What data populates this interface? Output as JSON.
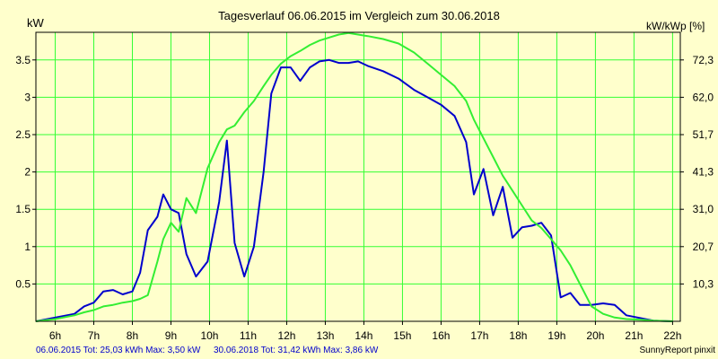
{
  "chart_data": {
    "type": "line",
    "title": "Tagesverlauf 06.06.2015 im Vergleich zum 30.06.2018",
    "ylabel_left": "kW",
    "ylabel_right": "kW/kWp [%]",
    "xlim": [
      5.5,
      22.2
    ],
    "ylim": [
      0,
      3.87
    ],
    "x_ticks": [
      6,
      7,
      8,
      9,
      10,
      11,
      12,
      13,
      14,
      15,
      16,
      17,
      18,
      19,
      20,
      21,
      22
    ],
    "x_tick_labels": [
      "6h",
      "7h",
      "8h",
      "9h",
      "10h",
      "11h",
      "12h",
      "13h",
      "14h",
      "15h",
      "16h",
      "17h",
      "18h",
      "19h",
      "20h",
      "21h",
      "22h"
    ],
    "y_ticks": [
      0.5,
      1,
      1.5,
      2,
      2.5,
      3,
      3.5
    ],
    "y_tick_labels": [
      "0.5",
      "1",
      "1.5",
      "2",
      "2.5",
      "3",
      "3.5"
    ],
    "y2_tick_values": [
      0.5,
      1.0,
      1.5,
      2.0,
      2.5,
      3.0,
      3.5
    ],
    "y2_tick_labels": [
      "10,3",
      "20,7",
      "31,0",
      "41,3",
      "51,7",
      "62,0",
      "72,3"
    ],
    "grid": true,
    "background_color": "#ffffcc",
    "grid_color": "#33ff33",
    "series": [
      {
        "color": "#0000cc",
        "x": [
          5.5,
          6.0,
          6.5,
          6.75,
          7.0,
          7.25,
          7.5,
          7.75,
          8.0,
          8.2,
          8.4,
          8.65,
          8.8,
          9.0,
          9.2,
          9.4,
          9.65,
          9.95,
          10.25,
          10.45,
          10.65,
          10.9,
          11.15,
          11.4,
          11.6,
          11.85,
          12.1,
          12.35,
          12.6,
          12.85,
          13.1,
          13.35,
          13.6,
          13.85,
          14.1,
          14.5,
          14.9,
          15.3,
          15.65,
          16.0,
          16.35,
          16.65,
          16.85,
          17.1,
          17.35,
          17.6,
          17.85,
          18.1,
          18.35,
          18.6,
          18.85,
          19.1,
          19.35,
          19.6,
          19.9,
          20.2,
          20.5,
          20.8,
          21.2,
          21.5,
          22.0
        ],
        "y": [
          0.0,
          0.05,
          0.1,
          0.2,
          0.25,
          0.4,
          0.42,
          0.36,
          0.4,
          0.65,
          1.22,
          1.4,
          1.7,
          1.5,
          1.45,
          0.9,
          0.6,
          0.8,
          1.6,
          2.42,
          1.05,
          0.6,
          1.0,
          2.0,
          3.05,
          3.4,
          3.4,
          3.22,
          3.4,
          3.48,
          3.5,
          3.46,
          3.46,
          3.48,
          3.42,
          3.35,
          3.25,
          3.1,
          3.0,
          2.9,
          2.75,
          2.4,
          1.7,
          2.04,
          1.42,
          1.8,
          1.12,
          1.26,
          1.28,
          1.32,
          1.15,
          0.32,
          0.38,
          0.22,
          0.22,
          0.24,
          0.22,
          0.08,
          0.04,
          0.01,
          0.0
        ]
      },
      {
        "color": "#33ee33",
        "x": [
          5.5,
          6.0,
          6.5,
          6.75,
          7.0,
          7.25,
          7.5,
          7.75,
          8.0,
          8.2,
          8.4,
          8.65,
          8.8,
          9.0,
          9.2,
          9.4,
          9.65,
          9.95,
          10.25,
          10.45,
          10.65,
          10.9,
          11.15,
          11.4,
          11.6,
          11.85,
          12.1,
          12.35,
          12.6,
          12.85,
          13.1,
          13.35,
          13.6,
          13.85,
          14.1,
          14.5,
          14.9,
          15.3,
          15.65,
          16.0,
          16.35,
          16.65,
          16.85,
          17.1,
          17.35,
          17.6,
          17.85,
          18.1,
          18.35,
          18.6,
          18.85,
          19.1,
          19.35,
          19.6,
          19.9,
          20.2,
          20.5,
          20.8,
          21.2,
          21.5,
          22.0
        ],
        "y": [
          0.0,
          0.03,
          0.08,
          0.12,
          0.15,
          0.2,
          0.22,
          0.25,
          0.27,
          0.3,
          0.35,
          0.8,
          1.1,
          1.32,
          1.2,
          1.65,
          1.45,
          2.05,
          2.4,
          2.57,
          2.62,
          2.8,
          2.95,
          3.15,
          3.3,
          3.45,
          3.55,
          3.62,
          3.7,
          3.76,
          3.8,
          3.84,
          3.86,
          3.84,
          3.82,
          3.78,
          3.72,
          3.6,
          3.45,
          3.3,
          3.15,
          2.95,
          2.7,
          2.45,
          2.2,
          1.95,
          1.75,
          1.55,
          1.35,
          1.25,
          1.1,
          0.95,
          0.75,
          0.5,
          0.2,
          0.1,
          0.05,
          0.03,
          0.02,
          0.01,
          0.0
        ]
      }
    ],
    "footer_left_1": "06.06.2015 Tot: 25,03 kWh Max: 3,50 kW",
    "footer_left_2": "30.06.2018 Tot: 31,42 kWh Max: 3,86 kW",
    "footer_right": "SunnyReport pinxit"
  }
}
